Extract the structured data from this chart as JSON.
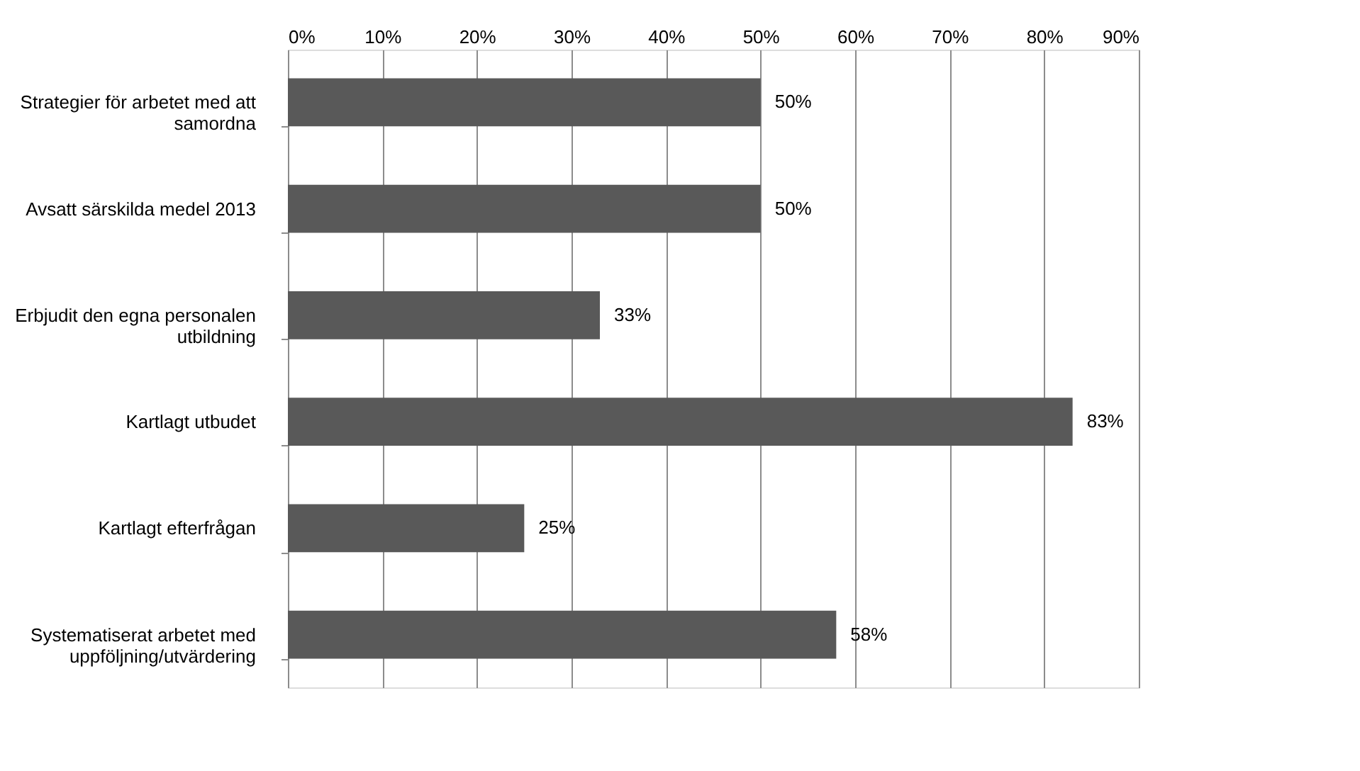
{
  "chart_data": {
    "type": "bar",
    "orientation": "horizontal",
    "categories": [
      "Strategier för arbetet med att samordna",
      "Avsatt särskilda medel 2013",
      "Erbjudit den egna personalen utbildning",
      "Kartlagt utbudet",
      "Kartlagt efterfrågan",
      "Systematiserat arbetet med uppföljning/utvärdering"
    ],
    "values": [
      50,
      50,
      33,
      83,
      25,
      58
    ],
    "value_labels": [
      "50%",
      "50%",
      "33%",
      "83%",
      "25%",
      "58%"
    ],
    "color": "#595959",
    "xlim": [
      0,
      90
    ],
    "xticks": [
      {
        "value": 0,
        "label": "0%"
      },
      {
        "value": 10,
        "label": "10%"
      },
      {
        "value": 20,
        "label": "20%"
      },
      {
        "value": 30,
        "label": "30%"
      },
      {
        "value": 40,
        "label": "40%"
      },
      {
        "value": 50,
        "label": "50%"
      },
      {
        "value": 60,
        "label": "60%"
      },
      {
        "value": 70,
        "label": "70%"
      },
      {
        "value": 80,
        "label": "80%"
      },
      {
        "value": 90,
        "label": "90%"
      }
    ],
    "grid": "x"
  }
}
